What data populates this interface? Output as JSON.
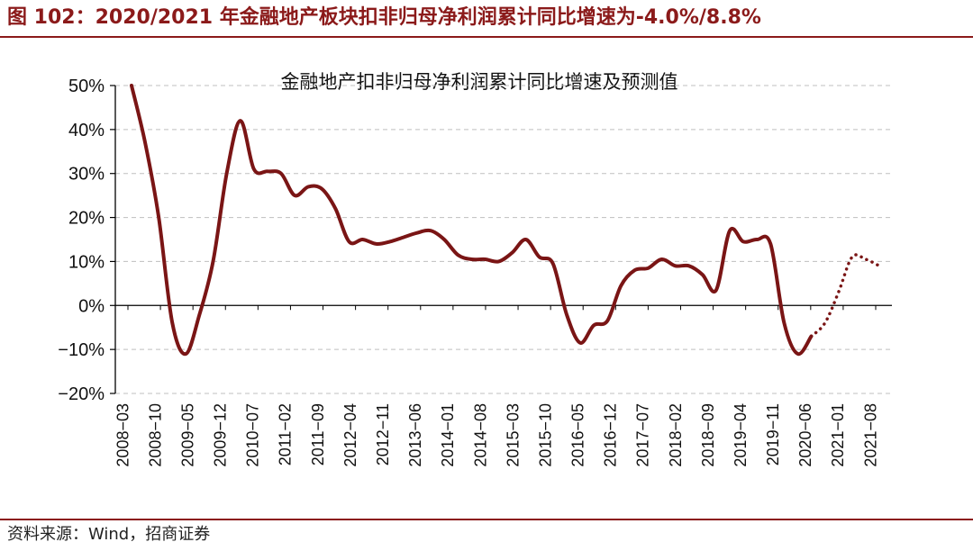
{
  "header": {
    "title": "图 102：2020/2021 年金融地产板块扣非归母净利润累计同比增速为-4.0%/8.8%"
  },
  "footer": {
    "source": "资料来源：Wind，招商证券"
  },
  "colors": {
    "brand": "#8B1A1A",
    "series": "#7A1515",
    "grid": "#BFBFBF"
  },
  "chart_data": {
    "type": "line",
    "title": "金融地产扣非归母净利润累计同比增速及预测值",
    "xlabel": "",
    "ylabel": "",
    "ylim": [
      -20,
      50
    ],
    "yticks": [
      50,
      40,
      30,
      20,
      10,
      0,
      -10,
      -20
    ],
    "ytick_labels": [
      "50%",
      "40%",
      "30%",
      "20%",
      "10%",
      "0%",
      "−10%",
      "−20%"
    ],
    "x_tick_labels": [
      "2008−03",
      "2008−10",
      "2009−05",
      "2009−12",
      "2010−07",
      "2011−02",
      "2011−09",
      "2012−04",
      "2012−11",
      "2013−06",
      "2014−01",
      "2014−08",
      "2015−03",
      "2015−10",
      "2016−05",
      "2016−12",
      "2017−07",
      "2018−02",
      "2018−09",
      "2019−04",
      "2019−11",
      "2020−06",
      "2021−01",
      "2021−08"
    ],
    "grid": "horizontal dashed",
    "series": [
      {
        "name": "扣非归母净利润累计同比增速",
        "style": "solid",
        "points": [
          [
            "2008-03",
            50
          ],
          [
            "2008-06",
            37
          ],
          [
            "2008-09",
            20
          ],
          [
            "2008-12",
            -4
          ],
          [
            "2009-03",
            -11
          ],
          [
            "2009-06",
            -2
          ],
          [
            "2009-09",
            10
          ],
          [
            "2009-12",
            30
          ],
          [
            "2010-03",
            42
          ],
          [
            "2010-06",
            31
          ],
          [
            "2010-09",
            30.5
          ],
          [
            "2010-12",
            30
          ],
          [
            "2011-03",
            25
          ],
          [
            "2011-06",
            27
          ],
          [
            "2011-09",
            26.5
          ],
          [
            "2011-12",
            22
          ],
          [
            "2012-03",
            14.5
          ],
          [
            "2012-06",
            15
          ],
          [
            "2012-09",
            14
          ],
          [
            "2012-12",
            14.5
          ],
          [
            "2013-03",
            15.5
          ],
          [
            "2013-06",
            16.5
          ],
          [
            "2013-09",
            17
          ],
          [
            "2013-12",
            15
          ],
          [
            "2014-03",
            11.5
          ],
          [
            "2014-06",
            10.5
          ],
          [
            "2014-09",
            10.5
          ],
          [
            "2014-12",
            10
          ],
          [
            "2015-03",
            12
          ],
          [
            "2015-06",
            15
          ],
          [
            "2015-09",
            11
          ],
          [
            "2015-12",
            9.5
          ],
          [
            "2016-03",
            -2
          ],
          [
            "2016-06",
            -8.5
          ],
          [
            "2016-09",
            -4.5
          ],
          [
            "2016-12",
            -3.5
          ],
          [
            "2017-03",
            4.5
          ],
          [
            "2017-06",
            8
          ],
          [
            "2017-09",
            8.5
          ],
          [
            "2017-12",
            10.5
          ],
          [
            "2018-03",
            9
          ],
          [
            "2018-06",
            9
          ],
          [
            "2018-09",
            7
          ],
          [
            "2018-12",
            3.5
          ],
          [
            "2019-03",
            17
          ],
          [
            "2019-06",
            14.5
          ],
          [
            "2019-09",
            15
          ],
          [
            "2019-12",
            14
          ],
          [
            "2020-03",
            -4
          ],
          [
            "2020-06",
            -11
          ],
          [
            "2020-09",
            -7
          ]
        ]
      },
      {
        "name": "预测值",
        "style": "dotted",
        "points": [
          [
            "2020-09",
            -7
          ],
          [
            "2020-12",
            -4
          ],
          [
            "2021-03",
            3
          ],
          [
            "2021-06",
            11
          ],
          [
            "2021-09",
            10.5
          ],
          [
            "2021-12",
            9
          ]
        ]
      }
    ]
  }
}
